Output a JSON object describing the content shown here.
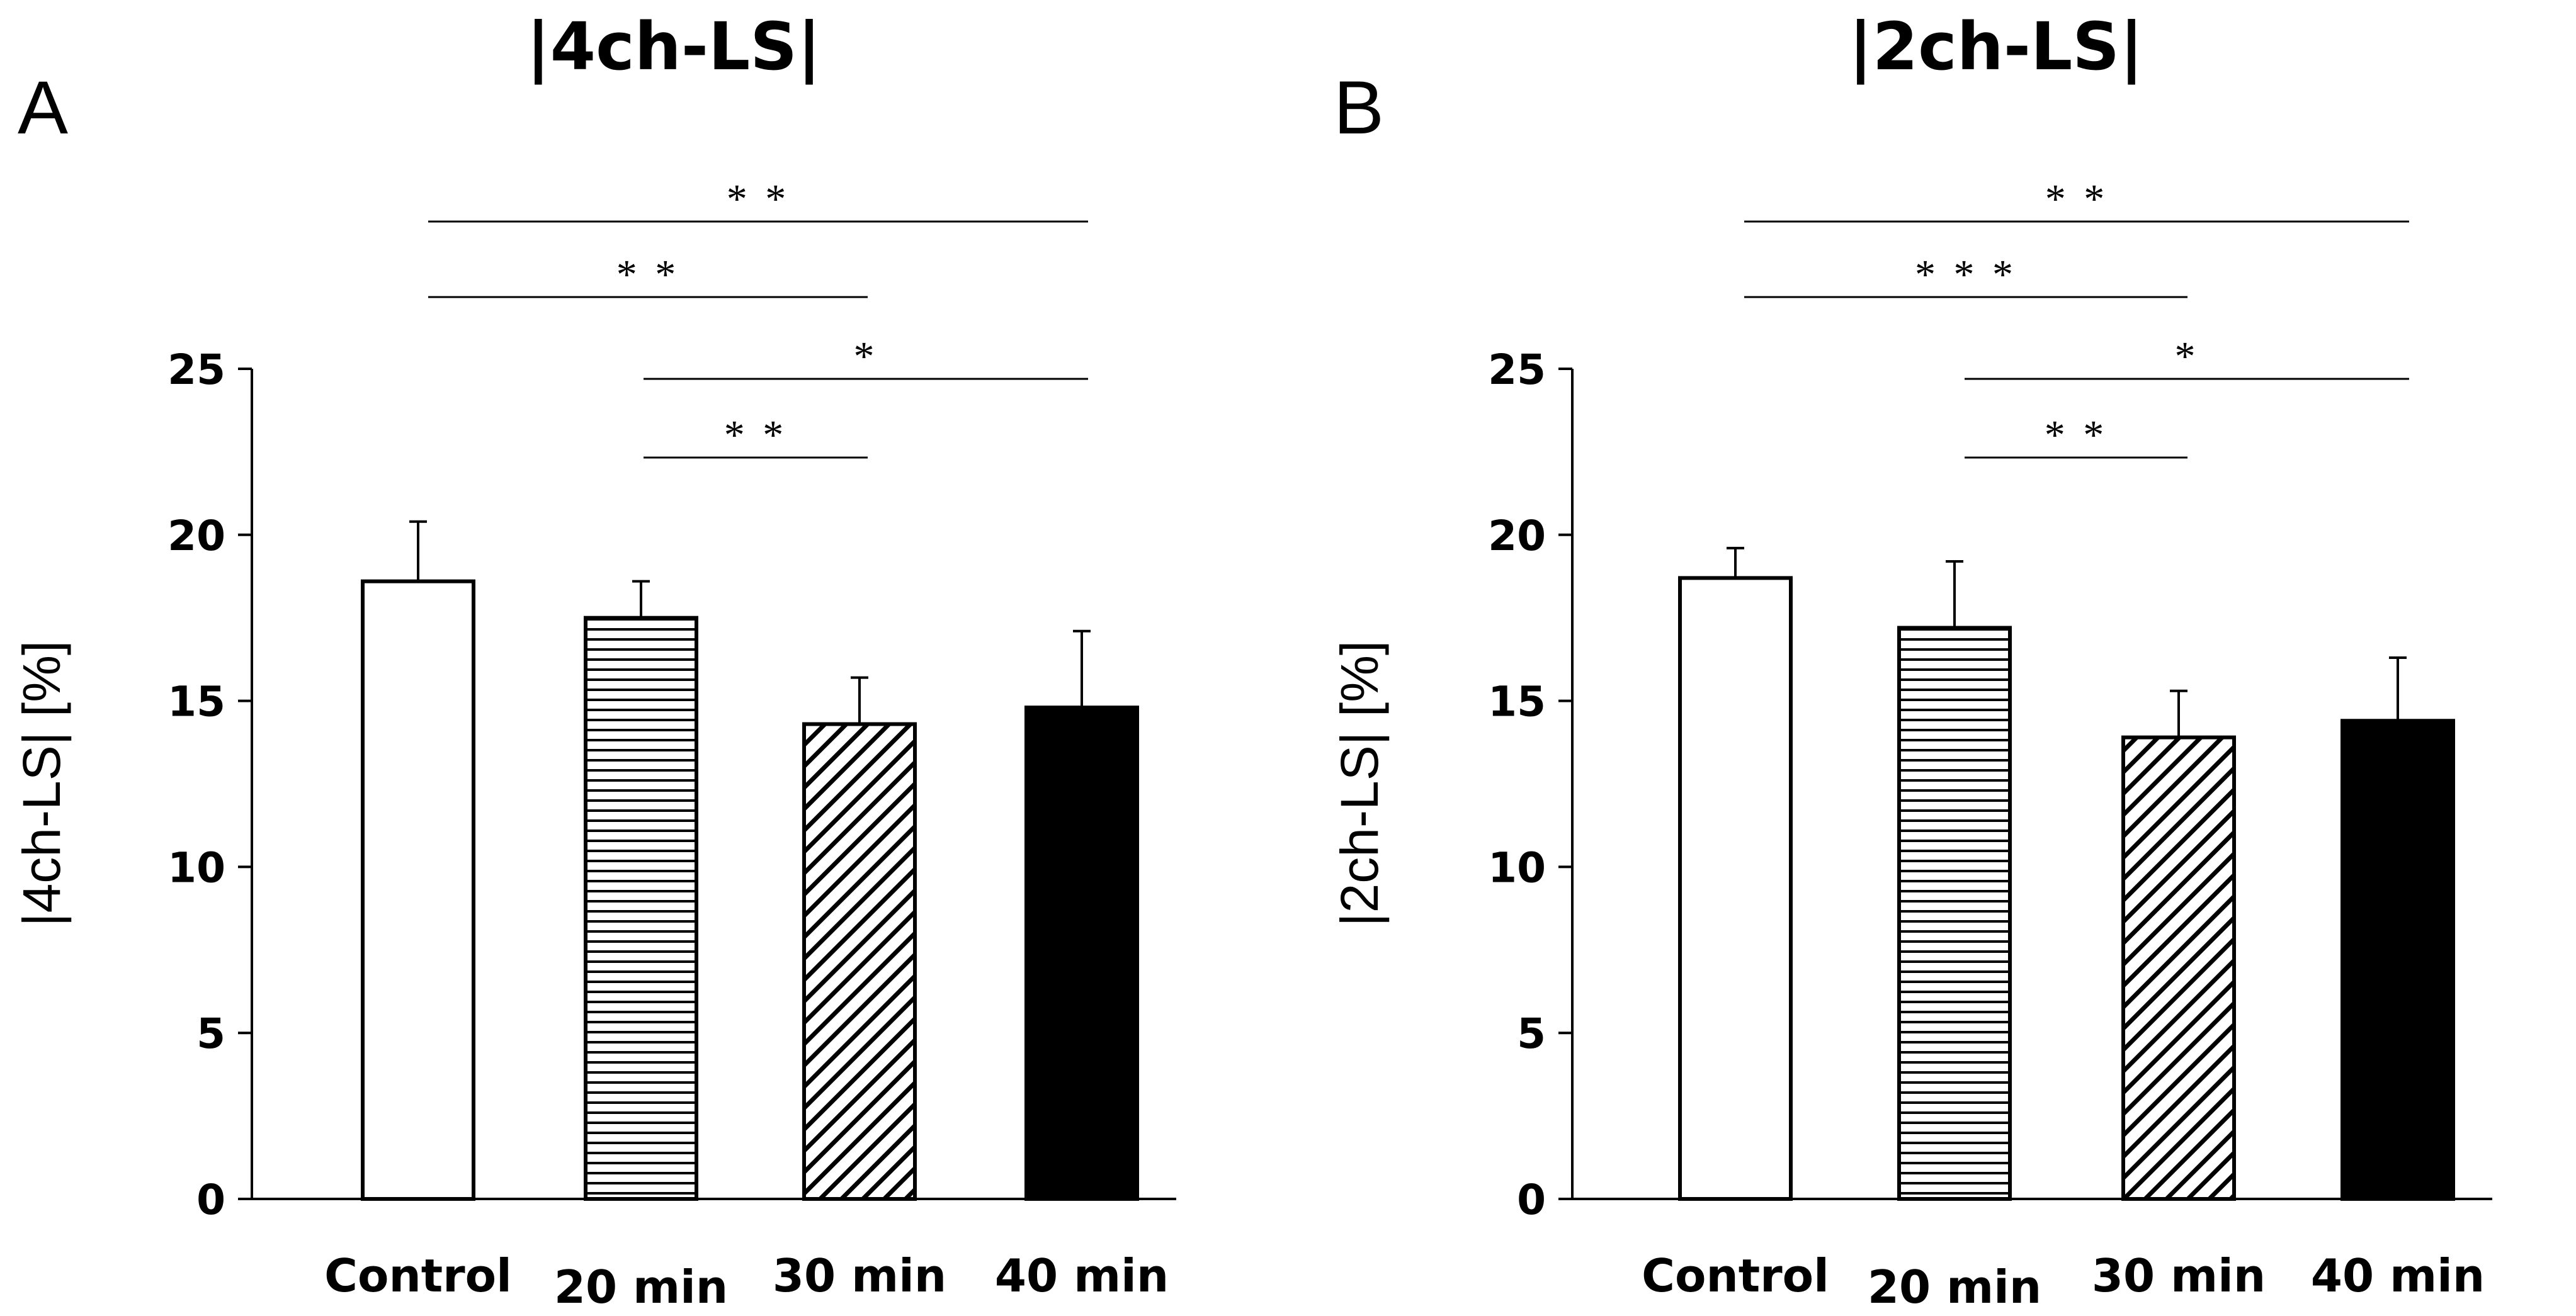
{
  "colors": {
    "ink": "#000000",
    "background": "#ffffff"
  },
  "chart_data": [
    {
      "panel": "A",
      "type": "bar",
      "title": "|4ch-LS|",
      "xlabel": "",
      "ylabel": "|4ch-LS| [%]",
      "ylim": [
        0,
        25
      ],
      "yticks": [
        "0",
        "5",
        "10",
        "15",
        "20",
        "25"
      ],
      "categories": [
        "Control",
        "20 min",
        "30 min",
        "40 min"
      ],
      "values": [
        18.6,
        17.5,
        14.3,
        14.8
      ],
      "errors": [
        1.8,
        1.1,
        1.4,
        2.3
      ],
      "fills": [
        "white",
        "horizontal-lines",
        "diagonal-lines",
        "black"
      ],
      "significance": [
        {
          "from": "Control",
          "to": "40 min",
          "label": "* *"
        },
        {
          "from": "Control",
          "to": "30 min",
          "label": "* *"
        },
        {
          "from": "20 min",
          "to": "40 min",
          "label": "*"
        },
        {
          "from": "20 min",
          "to": "30 min",
          "label": "* *"
        }
      ]
    },
    {
      "panel": "B",
      "type": "bar",
      "title": "|2ch-LS|",
      "xlabel": "",
      "ylabel": "|2ch-LS| [%]",
      "ylim": [
        0,
        25
      ],
      "yticks": [
        "0",
        "5",
        "10",
        "15",
        "20",
        "25"
      ],
      "categories": [
        "Control",
        "20 min",
        "30 min",
        "40 min"
      ],
      "values": [
        18.7,
        17.2,
        13.9,
        14.4
      ],
      "errors": [
        0.9,
        2.0,
        1.4,
        1.9
      ],
      "fills": [
        "white",
        "horizontal-lines",
        "diagonal-lines",
        "black"
      ],
      "significance": [
        {
          "from": "Control",
          "to": "40 min",
          "label": "* *"
        },
        {
          "from": "Control",
          "to": "30 min",
          "label": "* * *"
        },
        {
          "from": "20 min",
          "to": "40 min",
          "label": "*"
        },
        {
          "from": "20 min",
          "to": "30 min",
          "label": "* *"
        }
      ]
    }
  ]
}
